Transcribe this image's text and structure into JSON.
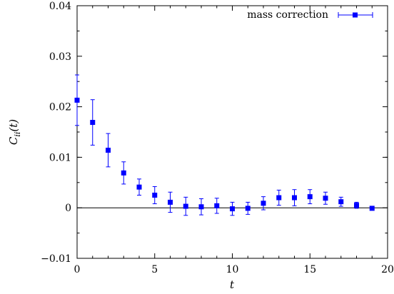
{
  "chart_data": {
    "type": "scatter",
    "xlabel": "t",
    "ylabel": "C_ii(t)",
    "xlim": [
      0,
      20
    ],
    "ylim": [
      -0.01,
      0.04
    ],
    "x_ticks": [
      0,
      5,
      10,
      15,
      20
    ],
    "x_tick_labels": [
      "0",
      "5",
      "10",
      "15",
      "20"
    ],
    "y_ticks": [
      -0.01,
      0,
      0.01,
      0.02,
      0.03,
      0.04
    ],
    "y_tick_labels": [
      "−0.01",
      "0",
      "0.01",
      "0.02",
      "0.03",
      "0.04"
    ],
    "grid": false,
    "zero_line": true,
    "legend": "top-right",
    "series": [
      {
        "name": "mass correction",
        "color": "#0000ff",
        "marker": "square",
        "error_bars": true,
        "points": [
          {
            "x": 0,
            "y": 0.0213,
            "err": 0.005
          },
          {
            "x": 1,
            "y": 0.0169,
            "err": 0.0045
          },
          {
            "x": 2,
            "y": 0.0114,
            "err": 0.0033
          },
          {
            "x": 3,
            "y": 0.0069,
            "err": 0.0022
          },
          {
            "x": 4,
            "y": 0.0041,
            "err": 0.0016
          },
          {
            "x": 5,
            "y": 0.0025,
            "err": 0.0017
          },
          {
            "x": 6,
            "y": 0.0011,
            "err": 0.002
          },
          {
            "x": 7,
            "y": 0.0003,
            "err": 0.0018
          },
          {
            "x": 8,
            "y": 0.0002,
            "err": 0.0016
          },
          {
            "x": 9,
            "y": 0.0004,
            "err": 0.0015
          },
          {
            "x": 10,
            "y": -0.0002,
            "err": 0.0013
          },
          {
            "x": 11,
            "y": -0.0001,
            "err": 0.0012
          },
          {
            "x": 12,
            "y": 0.0009,
            "err": 0.0013
          },
          {
            "x": 13,
            "y": 0.002,
            "err": 0.0015
          },
          {
            "x": 14,
            "y": 0.002,
            "err": 0.0016
          },
          {
            "x": 15,
            "y": 0.0022,
            "err": 0.0014
          },
          {
            "x": 16,
            "y": 0.0019,
            "err": 0.0012
          },
          {
            "x": 17,
            "y": 0.0012,
            "err": 0.0009
          },
          {
            "x": 18,
            "y": 0.0005,
            "err": 0.0006
          },
          {
            "x": 19,
            "y": -0.0001,
            "err": 0.0003
          }
        ]
      }
    ]
  }
}
